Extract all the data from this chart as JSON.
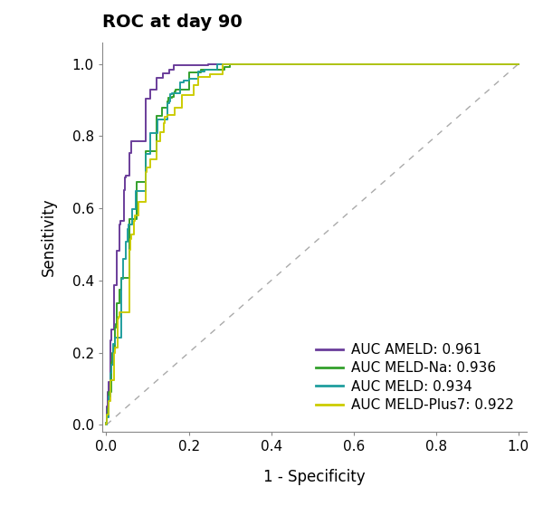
{
  "title": "ROC at day 90",
  "xlabel": "1 - Specificity",
  "ylabel": "Sensitivity",
  "title_fontsize": 14,
  "axis_fontsize": 12,
  "tick_fontsize": 11,
  "legend_fontsize": 11,
  "background_color": "#ffffff",
  "curves": [
    {
      "label": "AUC AMELD: 0.961",
      "color": "#6A3D9A",
      "auc": 0.961,
      "concentration": 25.0,
      "seed": 1
    },
    {
      "label": "AUC MELD-Na: 0.936",
      "color": "#33A02C",
      "auc": 0.936,
      "concentration": 12.0,
      "seed": 2
    },
    {
      "label": "AUC MELD: 0.934",
      "color": "#1F9E9E",
      "auc": 0.934,
      "concentration": 11.5,
      "seed": 3
    },
    {
      "label": "AUC MELD-Plus7: 0.922",
      "color": "#CCCC00",
      "auc": 0.922,
      "concentration": 9.0,
      "seed": 4
    }
  ]
}
